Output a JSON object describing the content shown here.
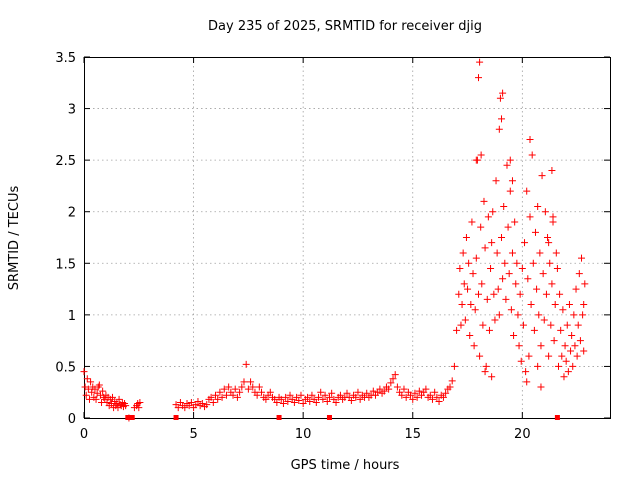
{
  "chart_data": {
    "type": "scatter",
    "title": "Day 235 of 2025, SRMTID for receiver djig",
    "xlabel": "GPS time / hours",
    "ylabel": "SRMTID / TECUs",
    "xlim": [
      0,
      24
    ],
    "ylim": [
      0,
      3.5
    ],
    "xticks": [
      0,
      5,
      10,
      15,
      20
    ],
    "xtick_labels": [
      "0",
      "5",
      "10",
      "15",
      "20"
    ],
    "yticks": [
      0,
      0.5,
      1,
      1.5,
      2,
      2.5,
      3,
      3.5
    ],
    "ytick_labels": [
      "0",
      "0.5",
      "1",
      "1.5",
      "2",
      "2.5",
      "3",
      "3.5"
    ],
    "grid": true,
    "marker": "+",
    "color": "#ff0000",
    "series": [
      {
        "name": "SRMTID",
        "x": [
          0.0,
          0.05,
          0.1,
          0.15,
          0.2,
          0.25,
          0.3,
          0.35,
          0.4,
          0.45,
          0.5,
          0.55,
          0.6,
          0.65,
          0.7,
          0.75,
          0.8,
          0.85,
          0.9,
          0.95,
          1.0,
          1.05,
          1.1,
          1.15,
          1.2,
          1.25,
          1.3,
          1.35,
          1.4,
          1.45,
          1.5,
          1.55,
          1.6,
          1.65,
          1.7,
          1.75,
          1.8,
          1.85,
          1.9,
          2.05,
          2.3,
          2.4,
          2.45,
          2.5,
          2.55,
          4.2,
          4.3,
          4.4,
          4.5,
          4.6,
          4.7,
          4.8,
          4.9,
          5.0,
          5.1,
          5.2,
          5.3,
          5.4,
          5.5,
          5.6,
          5.7,
          5.8,
          5.9,
          6.0,
          6.1,
          6.2,
          6.3,
          6.4,
          6.5,
          6.6,
          6.7,
          6.8,
          6.9,
          7.0,
          7.1,
          7.2,
          7.3,
          7.4,
          7.5,
          7.6,
          7.7,
          7.8,
          7.9,
          8.0,
          8.1,
          8.2,
          8.3,
          8.4,
          8.5,
          8.6,
          8.7,
          8.8,
          8.9,
          9.0,
          9.1,
          9.2,
          9.3,
          9.4,
          9.5,
          9.6,
          9.7,
          9.8,
          9.9,
          10.0,
          10.1,
          10.2,
          10.3,
          10.4,
          10.5,
          10.6,
          10.7,
          10.8,
          10.9,
          11.0,
          11.1,
          11.2,
          11.3,
          11.4,
          11.5,
          11.6,
          11.7,
          11.8,
          11.9,
          12.0,
          12.1,
          12.2,
          12.3,
          12.4,
          12.5,
          12.6,
          12.7,
          12.8,
          12.9,
          13.0,
          13.1,
          13.2,
          13.3,
          13.4,
          13.5,
          13.6,
          13.7,
          13.8,
          13.9,
          14.0,
          14.1,
          14.2,
          14.3,
          14.4,
          14.5,
          14.6,
          14.7,
          14.8,
          14.9,
          15.0,
          15.1,
          15.2,
          15.3,
          15.4,
          15.5,
          15.6,
          15.7,
          15.8,
          15.9,
          16.0,
          16.1,
          16.2,
          16.3,
          16.4,
          16.5,
          16.6,
          16.7,
          16.8,
          16.9,
          17.0,
          17.1,
          17.15,
          17.2,
          17.25,
          17.3,
          17.35,
          17.4,
          17.45,
          17.5,
          17.55,
          17.6,
          17.65,
          17.7,
          17.75,
          17.8,
          17.85,
          17.9,
          17.95,
          18.0,
          18.05,
          18.1,
          18.15,
          18.2,
          18.25,
          18.3,
          18.35,
          18.4,
          18.45,
          18.5,
          18.55,
          18.6,
          18.65,
          18.7,
          18.75,
          18.8,
          18.85,
          18.9,
          18.95,
          19.0,
          19.05,
          19.1,
          19.15,
          19.2,
          19.25,
          19.3,
          19.35,
          19.4,
          19.45,
          19.5,
          19.55,
          19.6,
          19.65,
          19.7,
          19.75,
          19.8,
          19.85,
          19.9,
          19.95,
          20.0,
          20.05,
          20.1,
          20.15,
          20.2,
          20.25,
          20.3,
          20.35,
          20.4,
          20.45,
          20.5,
          20.55,
          20.6,
          20.65,
          20.7,
          20.75,
          20.8,
          20.85,
          20.9,
          20.95,
          21.0,
          21.05,
          21.1,
          21.15,
          21.2,
          21.25,
          21.3,
          21.35,
          21.4,
          21.45,
          21.5,
          21.55,
          21.6,
          21.65,
          21.7,
          21.75,
          21.8,
          21.85,
          21.9,
          21.95,
          22.0,
          22.05,
          22.1,
          22.15,
          22.2,
          22.25,
          22.3,
          22.35,
          22.4,
          22.45,
          22.5,
          22.55,
          22.6,
          22.65,
          22.7,
          22.75,
          22.8,
          22.85,
          18.05,
          18.0,
          18.12,
          19.05,
          19.1,
          18.95,
          20.35,
          20.85,
          21.35,
          21.4,
          18.3,
          17.9,
          18.6,
          19.45,
          19.55,
          20.2,
          20.7,
          21.2,
          22.8
        ],
        "y": [
          0.45,
          0.3,
          0.22,
          0.38,
          0.28,
          0.18,
          0.35,
          0.25,
          0.3,
          0.2,
          0.28,
          0.18,
          0.24,
          0.3,
          0.32,
          0.22,
          0.15,
          0.26,
          0.2,
          0.18,
          0.22,
          0.15,
          0.2,
          0.12,
          0.18,
          0.14,
          0.2,
          0.1,
          0.16,
          0.12,
          0.14,
          0.1,
          0.18,
          0.13,
          0.12,
          0.15,
          0.11,
          0.14,
          0.12,
          0.0,
          0.1,
          0.12,
          0.14,
          0.1,
          0.15,
          0.13,
          0.1,
          0.15,
          0.12,
          0.1,
          0.14,
          0.12,
          0.15,
          0.1,
          0.13,
          0.16,
          0.12,
          0.14,
          0.11,
          0.13,
          0.18,
          0.2,
          0.15,
          0.22,
          0.18,
          0.25,
          0.2,
          0.28,
          0.22,
          0.3,
          0.25,
          0.22,
          0.28,
          0.2,
          0.25,
          0.3,
          0.35,
          0.52,
          0.28,
          0.35,
          0.3,
          0.25,
          0.22,
          0.3,
          0.25,
          0.2,
          0.18,
          0.22,
          0.25,
          0.2,
          0.18,
          0.15,
          0.2,
          0.18,
          0.14,
          0.2,
          0.16,
          0.22,
          0.18,
          0.15,
          0.2,
          0.17,
          0.22,
          0.14,
          0.18,
          0.2,
          0.16,
          0.22,
          0.18,
          0.15,
          0.2,
          0.25,
          0.18,
          0.22,
          0.16,
          0.2,
          0.24,
          0.18,
          0.15,
          0.2,
          0.22,
          0.18,
          0.2,
          0.24,
          0.2,
          0.17,
          0.22,
          0.2,
          0.25,
          0.18,
          0.22,
          0.2,
          0.24,
          0.2,
          0.22,
          0.26,
          0.22,
          0.25,
          0.28,
          0.24,
          0.26,
          0.3,
          0.28,
          0.34,
          0.38,
          0.42,
          0.3,
          0.25,
          0.22,
          0.28,
          0.2,
          0.25,
          0.22,
          0.18,
          0.24,
          0.2,
          0.26,
          0.22,
          0.25,
          0.28,
          0.2,
          0.22,
          0.18,
          0.25,
          0.2,
          0.16,
          0.22,
          0.2,
          0.24,
          0.28,
          0.3,
          0.36,
          0.5,
          0.85,
          1.2,
          1.45,
          0.9,
          1.1,
          1.6,
          1.3,
          0.95,
          1.75,
          1.25,
          1.5,
          0.8,
          1.1,
          1.9,
          1.4,
          0.7,
          1.05,
          1.55,
          2.5,
          1.2,
          0.6,
          1.85,
          1.3,
          0.9,
          2.1,
          1.65,
          0.5,
          1.15,
          1.95,
          0.85,
          1.45,
          1.7,
          2.0,
          1.2,
          0.95,
          2.3,
          1.6,
          1.25,
          2.8,
          3.1,
          1.75,
          1.35,
          2.05,
          1.5,
          1.15,
          2.45,
          1.85,
          1.4,
          2.2,
          1.05,
          1.6,
          0.8,
          1.9,
          1.3,
          1.5,
          1.0,
          0.7,
          1.2,
          0.55,
          1.45,
          0.9,
          1.7,
          0.45,
          2.2,
          1.35,
          0.6,
          1.95,
          1.1,
          2.55,
          1.5,
          0.85,
          1.8,
          1.25,
          2.05,
          1.0,
          1.6,
          0.7,
          2.35,
          1.4,
          0.95,
          2.0,
          1.2,
          1.75,
          0.6,
          1.5,
          0.9,
          1.3,
          1.95,
          0.75,
          1.1,
          1.6,
          1.45,
          0.5,
          1.2,
          0.85,
          0.6,
          1.05,
          0.4,
          0.7,
          0.55,
          0.9,
          0.45,
          1.1,
          0.65,
          0.8,
          0.5,
          1.0,
          0.7,
          1.25,
          0.6,
          0.9,
          1.4,
          0.75,
          1.55,
          1.0,
          0.65,
          1.3,
          3.45,
          3.3,
          2.55,
          2.9,
          3.15,
          1.0,
          2.7,
          0.3,
          2.4,
          1.9,
          0.45,
          2.5,
          0.4,
          2.5,
          2.3,
          0.35,
          0.5,
          1.7,
          1.1
        ]
      }
    ],
    "zero_markers_x": [
      2.0,
      2.2,
      4.2,
      8.9,
      11.2,
      21.6
    ]
  }
}
